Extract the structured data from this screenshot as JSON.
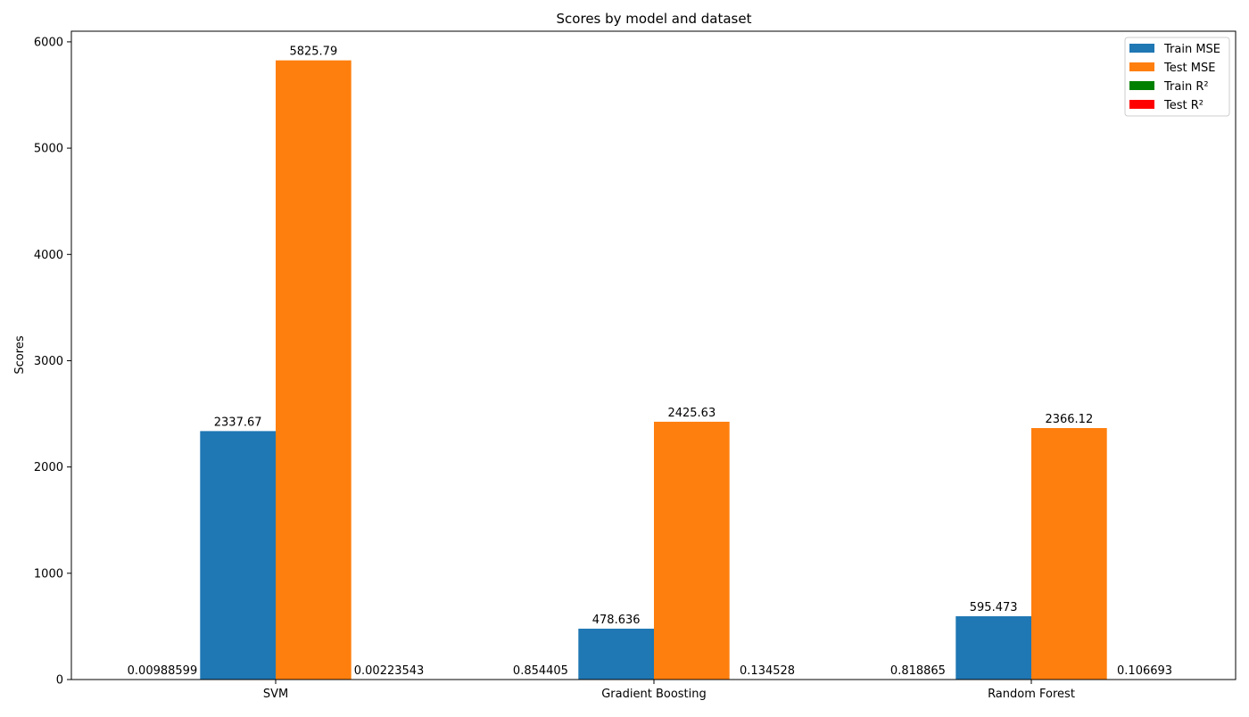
{
  "chart_data": {
    "type": "bar",
    "title": "Scores by model and dataset",
    "xlabel": "",
    "ylabel": "Scores",
    "categories": [
      "SVM",
      "Gradient Boosting",
      "Random Forest"
    ],
    "ylim": [
      0,
      6100
    ],
    "yticks": [
      0,
      1000,
      2000,
      3000,
      4000,
      5000,
      6000
    ],
    "legend_position": "top-right",
    "grid": false,
    "series": [
      {
        "name": "Train MSE",
        "color": "#1f77b4",
        "values": [
          2337.67,
          478.636,
          595.473
        ],
        "labels": [
          "2337.67",
          "478.636",
          "595.473"
        ]
      },
      {
        "name": "Test MSE",
        "color": "#ff7f0e",
        "values": [
          5825.79,
          2425.63,
          2366.12
        ],
        "labels": [
          "5825.79",
          "2425.63",
          "2366.12"
        ]
      },
      {
        "name": "Train R²",
        "color": "#008000",
        "values": [
          0.00988599,
          0.854405,
          0.818865
        ],
        "labels": [
          "0.00988599",
          "0.854405",
          "0.818865"
        ]
      },
      {
        "name": "Test R²",
        "color": "#ff0000",
        "values": [
          0.00223543,
          0.134528,
          0.106693
        ],
        "labels": [
          "0.00223543",
          "0.134528",
          "0.106693"
        ]
      }
    ]
  }
}
